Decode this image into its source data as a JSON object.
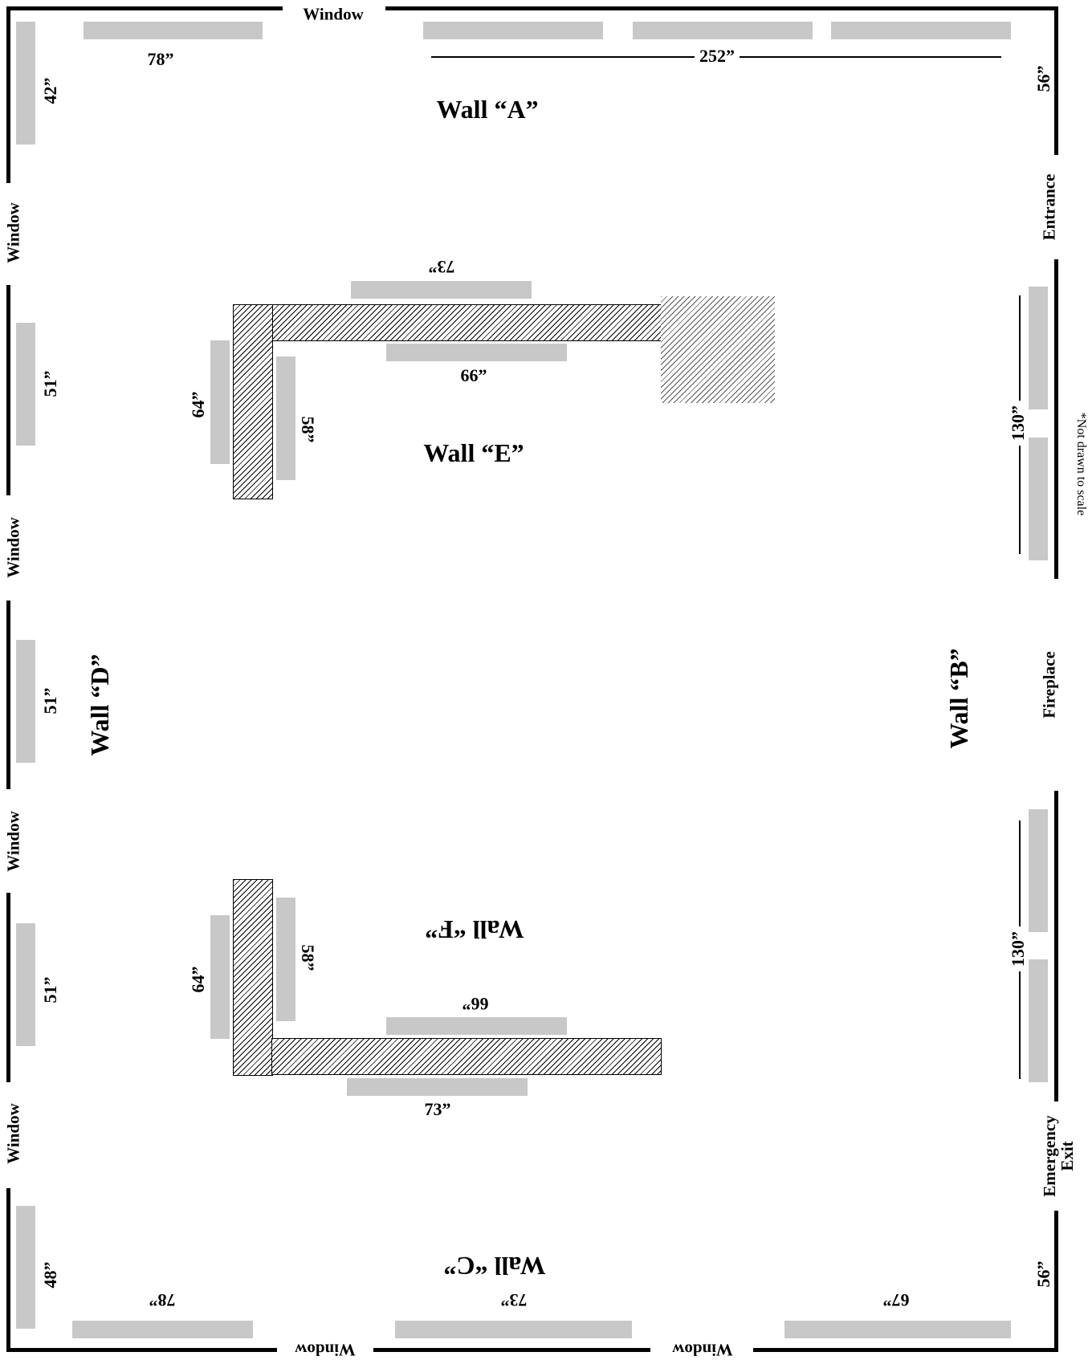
{
  "openings": {
    "top_window": "Window",
    "left_window_1": "Window",
    "left_window_2": "Window",
    "left_window_3": "Window",
    "left_window_4": "Window",
    "bottom_window_1": "Window",
    "bottom_window_2": "Window",
    "entrance": "Entrance",
    "fireplace": "Fireplace",
    "emergency_exit_line1": "Emergency",
    "emergency_exit_line2": "Exit"
  },
  "walls": {
    "a": "Wall “A”",
    "b": "Wall “B”",
    "c": "Wall “C”",
    "d": "Wall “D”",
    "e": "Wall “E”",
    "f": "Wall “F”"
  },
  "dimensions": {
    "top_left_panel": "78”",
    "top_run": "252”",
    "top_left_corner": "42”",
    "top_right_corner": "56”",
    "left_upper": "51”",
    "left_middle": "51”",
    "left_lower": "51”",
    "left_bottom": "48”",
    "right_upper_run": "130”",
    "right_lower_run": "130”",
    "bottom_right_corner": "56”",
    "bottom_left_panel": "78”",
    "bottom_middle_panel": "73”",
    "bottom_right_panel": "67”",
    "e_top": "73”",
    "e_inner_horizontal": "66”",
    "e_outer_vertical": "64”",
    "e_inner_vertical": "58”",
    "f_outer_vertical": "64”",
    "f_inner_vertical": "58”",
    "f_inner_horizontal": "66”",
    "f_bottom": "73”"
  },
  "note": "*Not drawn to scale"
}
